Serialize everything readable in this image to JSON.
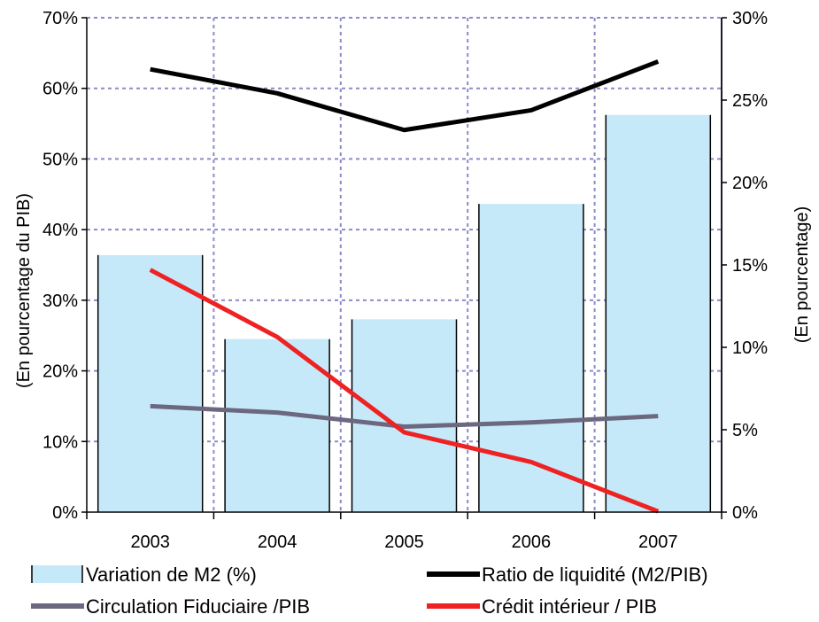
{
  "chart_data": {
    "type": "bar",
    "categories": [
      "2003",
      "2004",
      "2005",
      "2006",
      "2007"
    ],
    "left_axis": {
      "label": "(En pourcentage du PIB)",
      "range": [
        0,
        70
      ],
      "ticks": [
        "0%",
        "10%",
        "20%",
        "30%",
        "40%",
        "50%",
        "60%",
        "70%"
      ]
    },
    "right_axis": {
      "label": "(En pourcentage)",
      "range": [
        0,
        30
      ],
      "ticks": [
        "0%",
        "5%",
        "10%",
        "15%",
        "20%",
        "25%",
        "30%"
      ]
    },
    "grid": true,
    "legend_position": "bottom",
    "series": [
      {
        "name": "Variation de M2 (%)",
        "type": "bar",
        "axis": "right",
        "color": "#c6e9f9",
        "values": [
          15.6,
          10.5,
          11.7,
          18.7,
          24.1
        ]
      },
      {
        "name": "Ratio de liquidité (M2/PIB)",
        "type": "line",
        "axis": "left",
        "color": "#000000",
        "values": [
          62.7,
          59.3,
          54.1,
          56.9,
          63.8
        ]
      },
      {
        "name": "Circulation Fiduciaire /PIB",
        "type": "line",
        "axis": "left",
        "color": "#6c6880",
        "values": [
          15.0,
          14.1,
          12.1,
          12.7,
          13.6
        ]
      },
      {
        "name": "Crédit intérieur / PIB",
        "type": "line",
        "axis": "left",
        "color": "#ee2222",
        "values": [
          34.3,
          24.8,
          11.3,
          7.1,
          0.1
        ]
      }
    ]
  }
}
